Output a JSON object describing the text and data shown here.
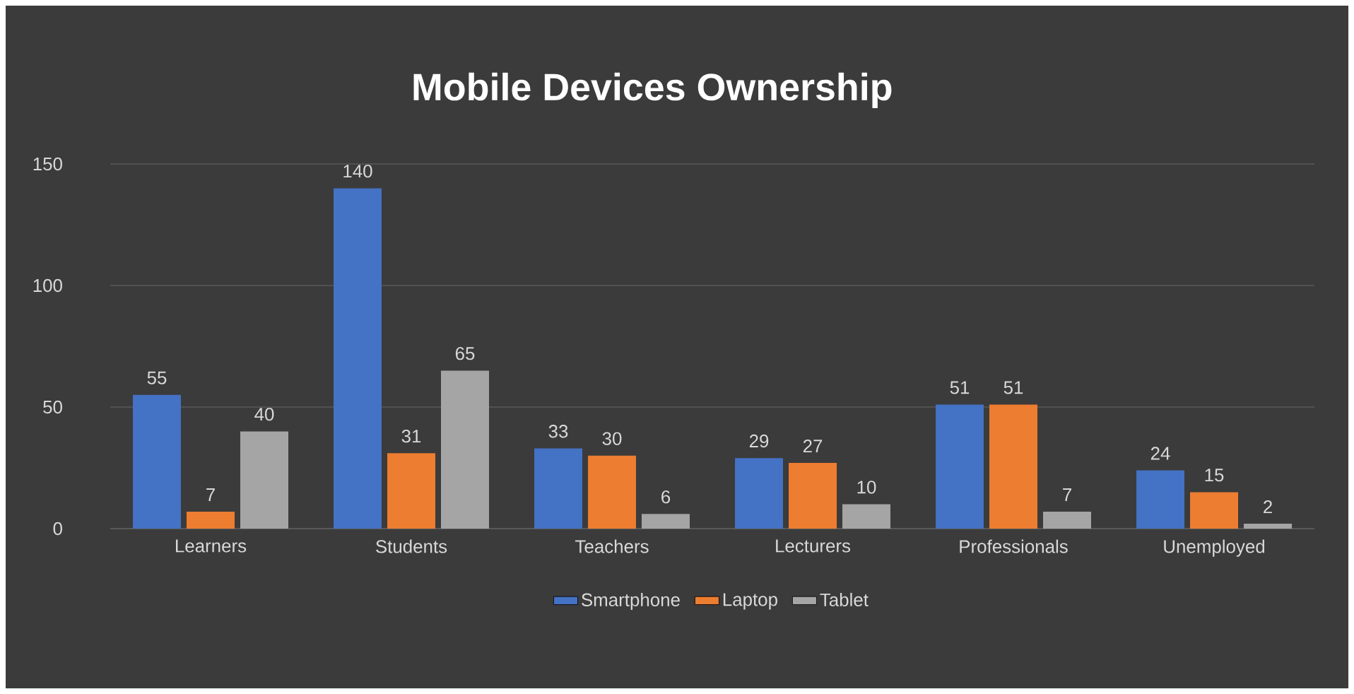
{
  "chart_data": {
    "type": "bar",
    "title": "Mobile Devices Ownership",
    "categories": [
      "Learners",
      "Students",
      "Teachers",
      "Lecturers",
      "Professionals",
      "Unemployed"
    ],
    "series": [
      {
        "name": "Smartphone",
        "color": "#4472c4",
        "values": [
          55,
          140,
          33,
          29,
          51,
          24
        ]
      },
      {
        "name": "Laptop",
        "color": "#ed7d31",
        "values": [
          7,
          31,
          30,
          27,
          51,
          15
        ]
      },
      {
        "name": "Tablet",
        "color": "#a5a5a5",
        "values": [
          40,
          65,
          6,
          10,
          7,
          2
        ]
      }
    ],
    "ylim": [
      0,
      150
    ],
    "yticks": [
      0,
      50,
      100,
      150
    ],
    "grid": "y",
    "legend": "bottom",
    "data_labels": true
  }
}
